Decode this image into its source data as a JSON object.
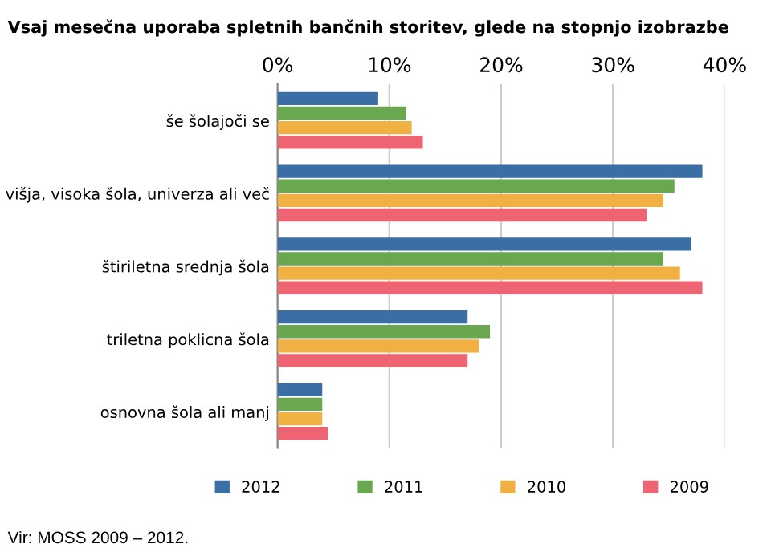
{
  "chart_data": {
    "type": "bar",
    "orientation": "horizontal",
    "title": "Vsaj mesečna uporaba spletnih bančnih storitev, glede na stopnjo izobrazbe",
    "categories": [
      "še šolajoči se",
      "višja, visoka šola, univerza ali več",
      "štiriletna srednja šola",
      "triletna poklicna šola",
      "osnovna šola ali manj"
    ],
    "series": [
      {
        "name": "2012",
        "color": "#3a6ea5",
        "values": [
          9,
          38,
          37,
          17,
          4
        ]
      },
      {
        "name": "2011",
        "color": "#6aa84f",
        "values": [
          11.5,
          35.5,
          34.5,
          19,
          4
        ]
      },
      {
        "name": "2010",
        "color": "#f1b042",
        "values": [
          12,
          34.5,
          36,
          18,
          4
        ]
      },
      {
        "name": "2009",
        "color": "#ef6472",
        "values": [
          13,
          33,
          38,
          17,
          4.5
        ]
      }
    ],
    "xlim": [
      0,
      40
    ],
    "xticks": [
      {
        "value": 0,
        "label": "0%"
      },
      {
        "value": 10,
        "label": "10%"
      },
      {
        "value": 20,
        "label": "20%"
      },
      {
        "value": 30,
        "label": "30%"
      },
      {
        "value": 40,
        "label": "40%"
      }
    ],
    "grid": "x",
    "legend": "bottom",
    "annotations": [
      "Vir: MOSS 2009 – 2012."
    ]
  }
}
